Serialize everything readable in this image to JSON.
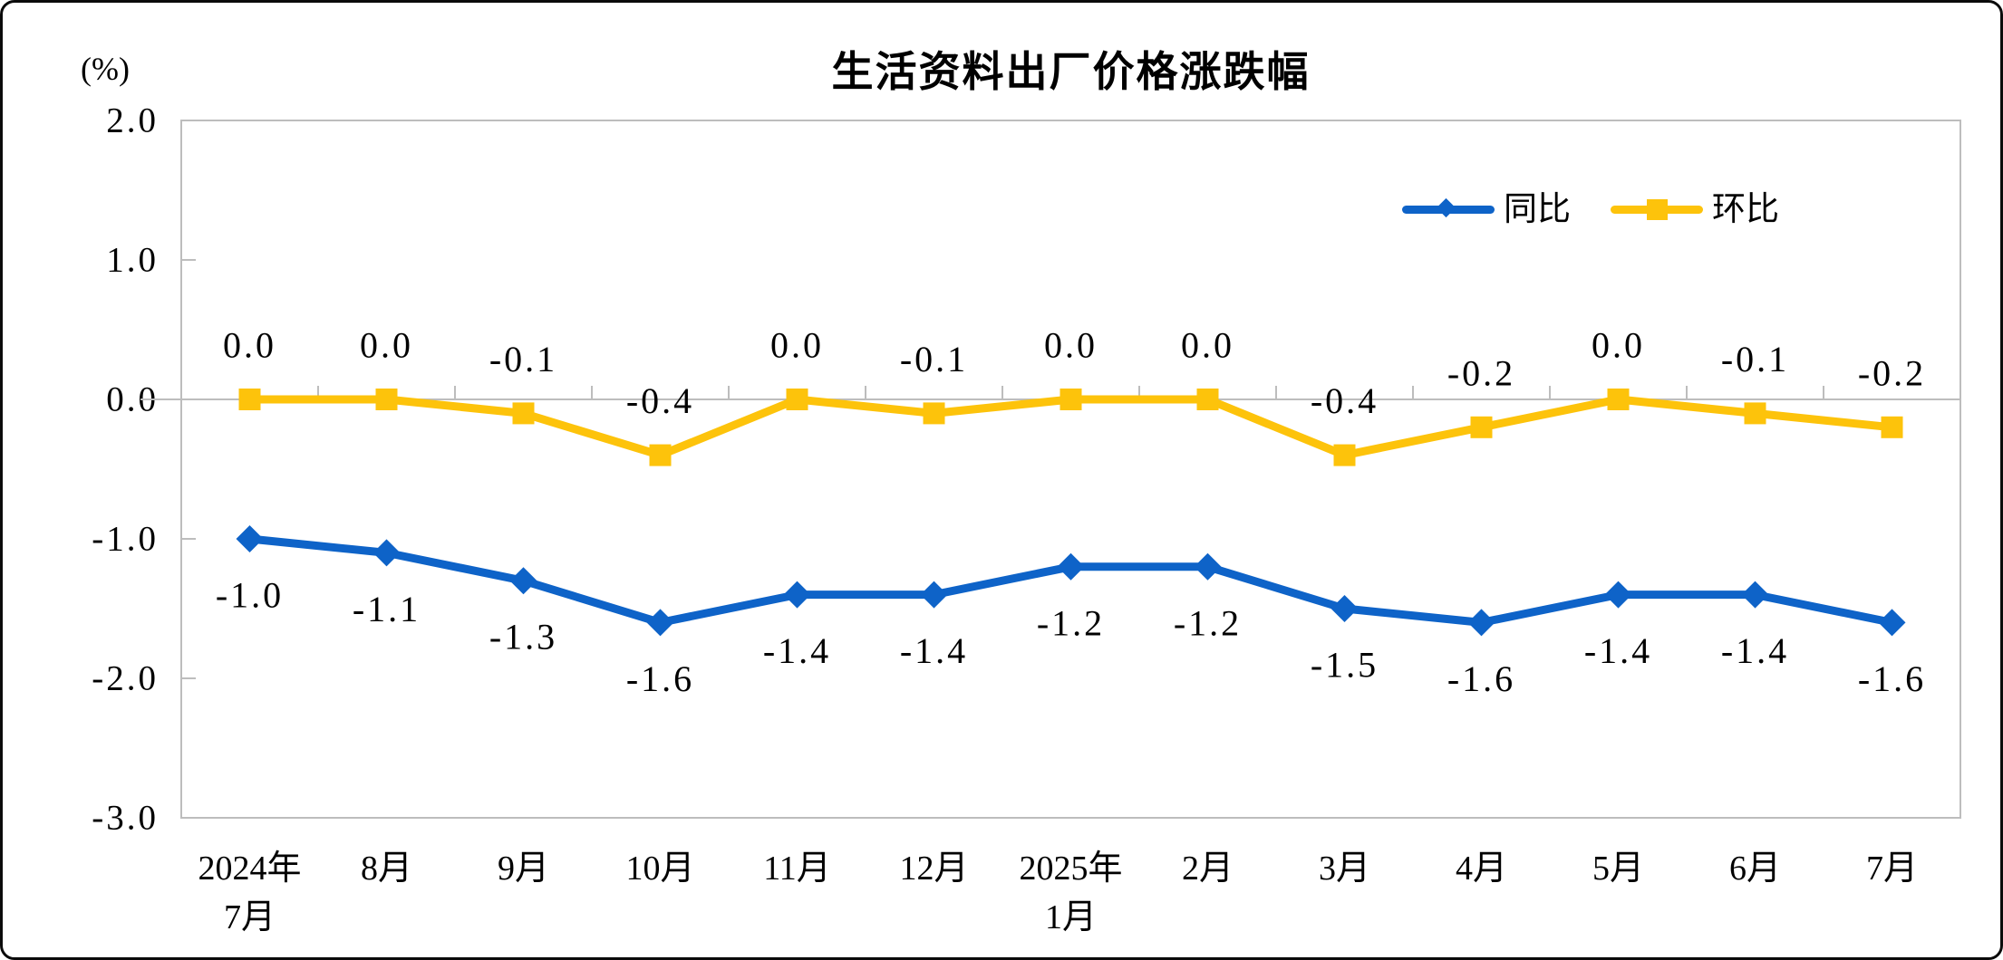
{
  "chart_data": {
    "type": "line",
    "title": "生活资料出厂价格涨跌幅",
    "ylabel": "(%)",
    "ylim": [
      -3.0,
      2.0
    ],
    "y_tick_step": 1.0,
    "y_tick_labels": [
      "2.0",
      "1.0",
      "0.0",
      "-1.0",
      "-2.0",
      "-3.0"
    ],
    "grid": false,
    "legend_position": "top-right",
    "categories": [
      "2024年\n7月",
      "8月",
      "9月",
      "10月",
      "11月",
      "12月",
      "2025年\n1月",
      "2月",
      "3月",
      "4月",
      "5月",
      "6月",
      "7月"
    ],
    "series": [
      {
        "name": "同比",
        "color": "#0E63C8",
        "marker": "diamond",
        "label_position": "below",
        "values": [
          -1.0,
          -1.1,
          -1.3,
          -1.6,
          -1.4,
          -1.4,
          -1.2,
          -1.2,
          -1.5,
          -1.6,
          -1.4,
          -1.4,
          -1.6
        ],
        "labels": [
          "-1.0",
          "-1.1",
          "-1.3",
          "-1.6",
          "-1.4",
          "-1.4",
          "-1.2",
          "-1.2",
          "-1.5",
          "-1.6",
          "-1.4",
          "-1.4",
          "-1.6"
        ]
      },
      {
        "name": "环比",
        "color": "#FDC30B",
        "marker": "square",
        "label_position": "above",
        "values": [
          0.0,
          0.0,
          -0.1,
          -0.4,
          0.0,
          -0.1,
          0.0,
          0.0,
          -0.4,
          -0.2,
          0.0,
          -0.1,
          -0.2
        ],
        "labels": [
          "0.0",
          "0.0",
          "-0.1",
          "-0.4",
          "0.0",
          "-0.1",
          "0.0",
          "0.0",
          "-0.4",
          "-0.2",
          "0.0",
          "-0.1",
          "-0.2"
        ]
      }
    ],
    "axis_color": "#BDBDBD"
  }
}
